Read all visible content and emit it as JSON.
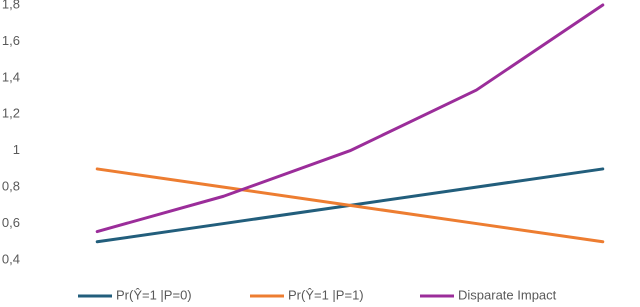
{
  "chart_data": {
    "type": "line",
    "categories": [
      null,
      null,
      null,
      null,
      null
    ],
    "series": [
      {
        "name": "Pr(Ŷ=1 |P=0)",
        "color": "#225e7c",
        "values": [
          0.5,
          0.6,
          0.7,
          0.8,
          0.9
        ]
      },
      {
        "name": "Pr(Ŷ=1 |P=1)",
        "color": "#ed7d31",
        "values": [
          0.9,
          0.8,
          0.7,
          0.6,
          0.5
        ]
      },
      {
        "name": "Disparate Impact",
        "color": "#9b2d9a",
        "values": [
          0.556,
          0.75,
          1.0,
          1.333,
          1.8
        ]
      }
    ],
    "ylim": [
      0.4,
      1.8
    ],
    "yticks": [
      {
        "value": 0.4,
        "label": "0,4"
      },
      {
        "value": 0.6,
        "label": "0,6"
      },
      {
        "value": 0.8,
        "label": "0,8"
      },
      1,
      {
        "value": 1.2,
        "label": "1,2"
      },
      {
        "value": 1.4,
        "label": "1,4"
      },
      {
        "value": 1.6,
        "label": "1,6"
      },
      {
        "value": 1.8,
        "label": "1,8"
      }
    ],
    "grid": false,
    "legend": "bottom"
  }
}
